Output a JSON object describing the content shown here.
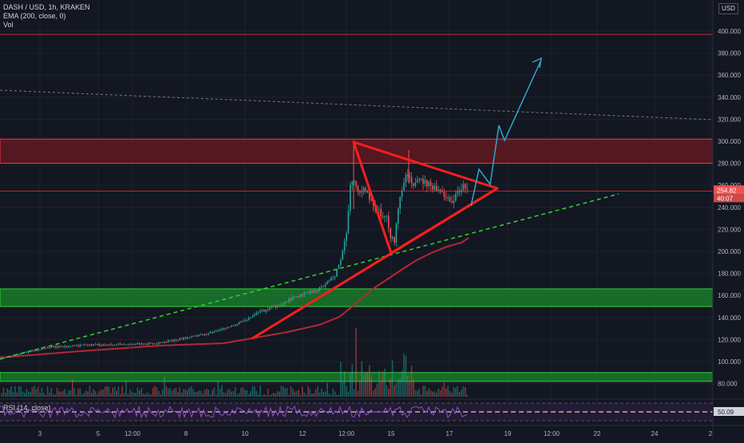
{
  "header": {
    "symbol_line": "DASH / USD, 1h, KRAKEN",
    "ema_line": "EMA (200, close, 0)",
    "vol_line": "Vol",
    "currency": "USD",
    "rsi_line": "RSI (14, close)"
  },
  "price_labels": {
    "last_price": "254.82",
    "countdown": "40:07",
    "rsi_value": "50.09"
  },
  "colors": {
    "background": "#131722",
    "up_candle": "#26a69a",
    "down_candle": "#ef5350",
    "ema_line": "#b22833",
    "triangle": "#ff1e1e",
    "trend_dashed": "#2ed52e",
    "projection": "#2fa7c6",
    "red_zone": "#8b1a20",
    "green_zone": "#1b8f2c",
    "rsi_line": "#8e4fc6",
    "last_price_label": "#ef5350"
  },
  "chart_data": {
    "type": "candlestick",
    "symbol": "DASH / USD",
    "timeframe": "1h",
    "exchange": "KRAKEN",
    "y_axis": {
      "min": 70,
      "max": 410,
      "ticks": [
        80,
        100,
        120,
        140,
        160,
        180,
        200,
        220,
        240,
        260,
        280,
        300,
        320,
        340,
        360,
        380,
        400
      ]
    },
    "x_axis": {
      "ticks": [
        "3",
        "5",
        "12:00",
        "8",
        "10",
        "12",
        "12:00",
        "15",
        "17",
        "19",
        "12:00",
        "22",
        "24",
        "2"
      ]
    },
    "close_path": [
      [
        "3",
        102
      ],
      [
        "5",
        114
      ],
      [
        "12:00",
        116
      ],
      [
        "8",
        118
      ],
      [
        "10",
        140
      ],
      [
        "12",
        168
      ],
      [
        "12:00",
        262
      ],
      [
        "15",
        205
      ],
      [
        "15",
        270
      ],
      [
        "17",
        248
      ]
    ],
    "ema200": [
      [
        "3",
        104
      ],
      [
        "12:00",
        114
      ],
      [
        "10",
        120
      ],
      [
        "12",
        135
      ],
      [
        "12:00",
        150
      ],
      [
        "15",
        180
      ],
      [
        "17",
        205
      ]
    ],
    "annotations": {
      "red_resistance_zone": [
        280,
        302
      ],
      "green_support_zone": [
        150,
        166
      ],
      "horizontal_lines": [
        397,
        254.82
      ],
      "symmetrical_triangle": {
        "apex_price": 256,
        "upper_start": 300,
        "lower_start": 199
      },
      "projection_path_prices": [
        240,
        275,
        258,
        315,
        300,
        375
      ]
    },
    "rsi": {
      "period": 14,
      "value": 50.09
    }
  }
}
